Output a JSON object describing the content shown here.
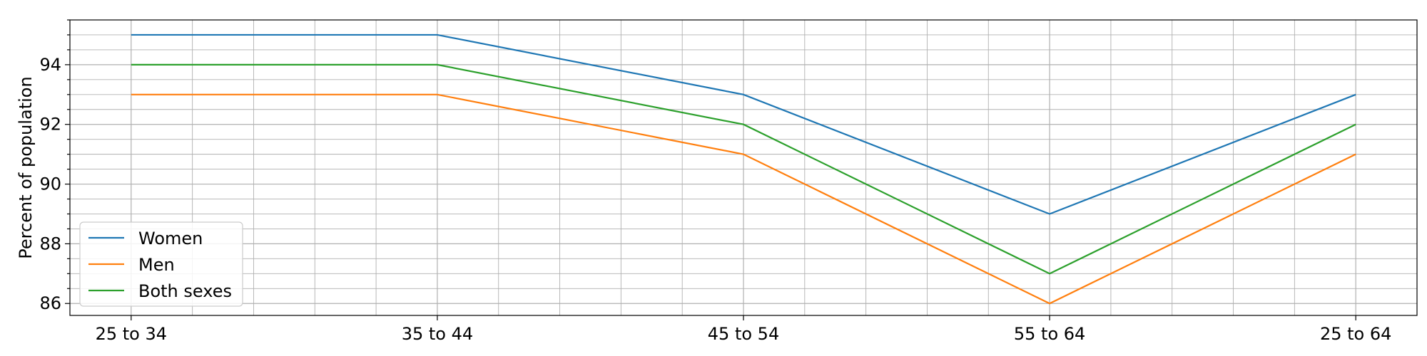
{
  "chart_data": {
    "type": "line",
    "categories": [
      "25 to 34",
      "35 to 44",
      "45 to 54",
      "55 to 64",
      "25 to 64"
    ],
    "ylabel": "Percent of population",
    "ylim": [
      85.6,
      95.5
    ],
    "yticks": [
      86,
      88,
      90,
      92,
      94
    ],
    "grid": true,
    "minor_grid": true,
    "legend_position": "lower-left",
    "series": [
      {
        "name": "Women",
        "color": "#1f77b4",
        "values": [
          95,
          95,
          93,
          89,
          93
        ]
      },
      {
        "name": "Men",
        "color": "#ff7f0e",
        "values": [
          93,
          93,
          91,
          86,
          91
        ]
      },
      {
        "name": "Both sexes",
        "color": "#2ca02c",
        "values": [
          94,
          94,
          92,
          87,
          92
        ]
      }
    ]
  }
}
